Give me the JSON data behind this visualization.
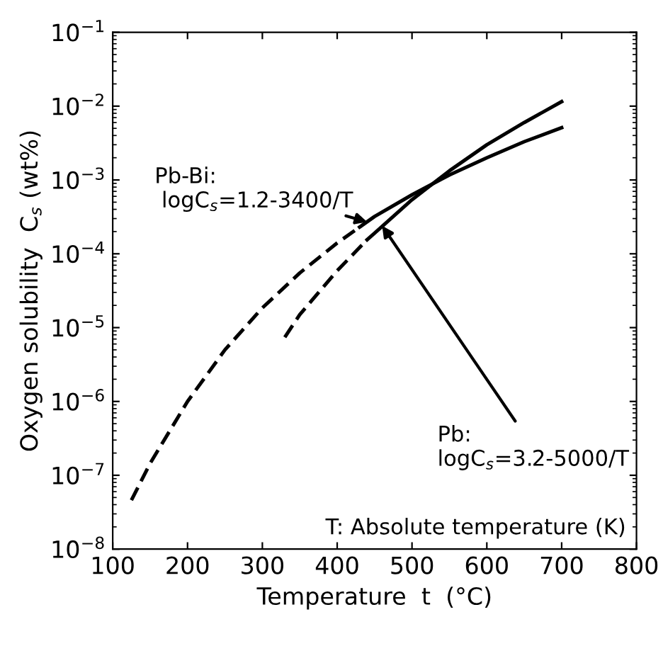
{
  "chart_data": {
    "type": "line",
    "xlabel": "Temperature  t  (°C)",
    "ylabel": "Oxygen solubility  C$_{s}$ (wt%)",
    "log": "y",
    "xlim": [
      100,
      800
    ],
    "ylim": [
      1e-08,
      0.1
    ],
    "xticks": [
      100,
      200,
      300,
      400,
      500,
      600,
      700,
      800
    ],
    "yticks": [
      {
        "value": 1e-08,
        "label": "10$^{−8}$"
      },
      {
        "value": 1e-07,
        "label": "10$^{−7}$"
      },
      {
        "value": 1e-06,
        "label": "10$^{−6}$"
      },
      {
        "value": 1e-05,
        "label": "10$^{−5}$"
      },
      {
        "value": 0.0001,
        "label": "10$^{−4}$"
      },
      {
        "value": 0.001,
        "label": "10$^{−3}$"
      },
      {
        "value": 0.01,
        "label": "10$^{−2}$"
      },
      {
        "value": 0.1,
        "label": "10$^{−1}$"
      }
    ],
    "grid": false,
    "legend": false,
    "marker": "none",
    "series": [
      {
        "color": "#000000",
        "line_style": "dashed",
        "x": [
          125,
          150,
          200,
          250,
          300,
          350,
          400,
          430
        ],
        "values": [
          4.6e-08,
          1.45e-07,
          1e-06,
          5e-06,
          1.85e-05,
          5.5e-05,
          0.00014,
          0.00023
        ]
      },
      {
        "color": "#000000",
        "line_style": "solid",
        "x": [
          430,
          450,
          500,
          550,
          600,
          650,
          700
        ],
        "values": [
          0.00023,
          0.00032,
          0.00063,
          0.00117,
          0.002,
          0.0033,
          0.0051
        ]
      },
      {
        "color": "#000000",
        "line_style": "dashed",
        "x": [
          330,
          350,
          400,
          440
        ],
        "values": [
          7.4e-06,
          1.5e-05,
          5.9e-05,
          0.000155
        ]
      },
      {
        "color": "#000000",
        "line_style": "solid",
        "x": [
          440,
          450,
          500,
          550,
          600,
          650,
          700
        ],
        "values": [
          0.000155,
          0.00019,
          0.00054,
          0.00133,
          0.003,
          0.006,
          0.0115
        ]
      }
    ],
    "annotations": [
      {
        "text": "Pb-Bi:\n logC$_{s}$=1.2-3400/T",
        "x": 440,
        "y": 0.00027
      },
      {
        "text": "Pb:\nlogC$_{s}$=3.2-5000/T",
        "x": 460,
        "y": 0.00024
      },
      "T: Absolute temperature (K)"
    ]
  }
}
